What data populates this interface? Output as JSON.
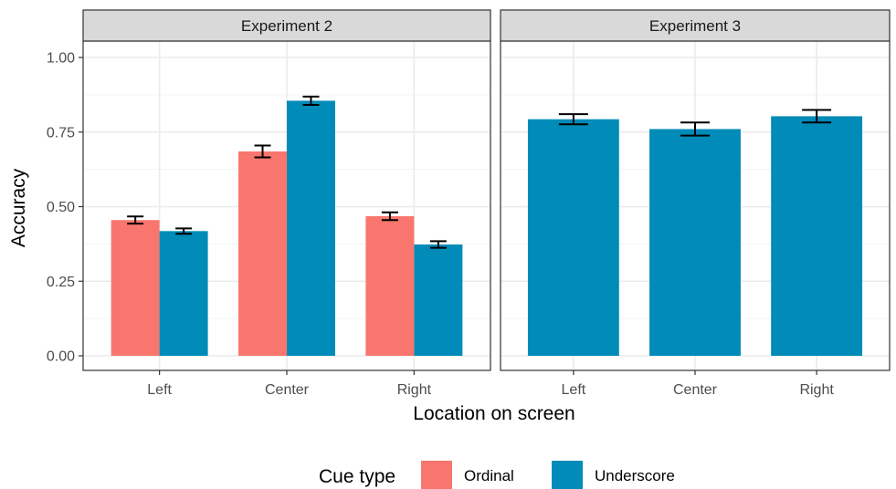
{
  "chart_data": {
    "type": "bar",
    "title": "",
    "xlabel": "Location on screen",
    "ylabel": "Accuracy",
    "ylim": [
      0,
      1.05
    ],
    "yticks": [
      "0.00",
      "0.25",
      "0.50",
      "0.75",
      "1.00"
    ],
    "ytick_values": [
      0,
      0.25,
      0.5,
      0.75,
      1.0
    ],
    "categories": [
      "Left",
      "Center",
      "Right"
    ],
    "grid": true,
    "legend": {
      "title": "Cue type",
      "position": "bottom",
      "entries": [
        {
          "name": "Ordinal",
          "color": "#F8766D"
        },
        {
          "name": "Underscore",
          "color": "#008BB8"
        }
      ]
    },
    "panels": [
      {
        "title": "Experiment 2",
        "series": [
          {
            "name": "Ordinal",
            "color": "#F8766D",
            "values": [
              0.455,
              0.685,
              0.468
            ],
            "error_low": [
              0.443,
              0.665,
              0.455
            ],
            "error_high": [
              0.467,
              0.705,
              0.481
            ]
          },
          {
            "name": "Underscore",
            "color": "#008BB8",
            "values": [
              0.418,
              0.855,
              0.373
            ],
            "error_low": [
              0.409,
              0.841,
              0.362
            ],
            "error_high": [
              0.427,
              0.869,
              0.384
            ]
          }
        ]
      },
      {
        "title": "Experiment 3",
        "series": [
          {
            "name": "Underscore",
            "color": "#008BB8",
            "values": [
              0.793,
              0.76,
              0.803
            ],
            "error_low": [
              0.776,
              0.738,
              0.782
            ],
            "error_high": [
              0.81,
              0.782,
              0.824
            ]
          }
        ]
      }
    ]
  }
}
